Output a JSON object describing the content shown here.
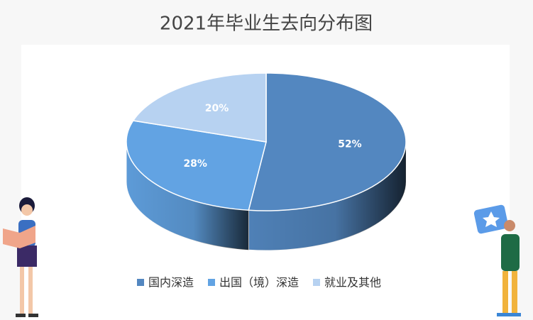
{
  "chart_data": {
    "type": "pie",
    "title": "2021年毕业生去向分布图",
    "categories": [
      "国内深造",
      "出国（境）深造",
      "就业及其他"
    ],
    "values": [
      52,
      28,
      20
    ],
    "value_labels": [
      "52%",
      "28%",
      "20%"
    ],
    "colors": [
      "#5387c0",
      "#62a3e3",
      "#b7d2f1"
    ],
    "legend": "bottom"
  }
}
